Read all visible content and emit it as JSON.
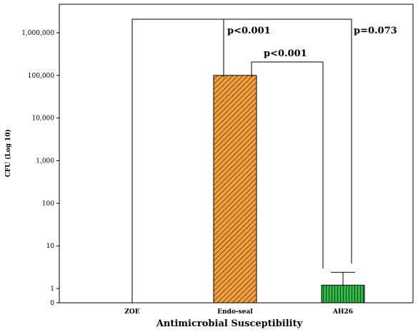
{
  "chart_data": {
    "type": "bar",
    "title": "",
    "xlabel": "Antimicrobial Susceptibility",
    "ylabel": "CFU (Log 10)",
    "y_scale": "log",
    "categories": [
      "ZOE",
      "Endo-seal",
      "AH26"
    ],
    "values": [
      0,
      100000,
      1.2
    ],
    "error_bars": [
      null,
      null,
      2.4
    ],
    "yticks": [
      {
        "value": 0,
        "label": "0"
      },
      {
        "value": 1,
        "label": "1"
      },
      {
        "value": 10,
        "label": "10"
      },
      {
        "value": 100,
        "label": "100"
      },
      {
        "value": 1000,
        "label": "1,000"
      },
      {
        "value": 10000,
        "label": "10,000"
      },
      {
        "value": 100000,
        "label": "100,000"
      },
      {
        "value": 1000000,
        "label": "1,000,000"
      }
    ],
    "bar_styles": [
      {
        "fill": "#f0a040",
        "hatch": "#6b2e00"
      },
      {
        "fill": "#f0a040",
        "hatch": "#6b2e00"
      },
      {
        "fill": "#2eb84a",
        "hatch": "#0a4a14"
      }
    ],
    "comparisons": [
      {
        "from": "ZOE",
        "to": "AH26",
        "label": "p=0.073"
      },
      {
        "from": "Endo-seal",
        "to": "ZOE",
        "label": "p<0.001"
      },
      {
        "from": "Endo-seal",
        "to": "AH26",
        "label": "p<0.001"
      }
    ],
    "grid": false
  }
}
